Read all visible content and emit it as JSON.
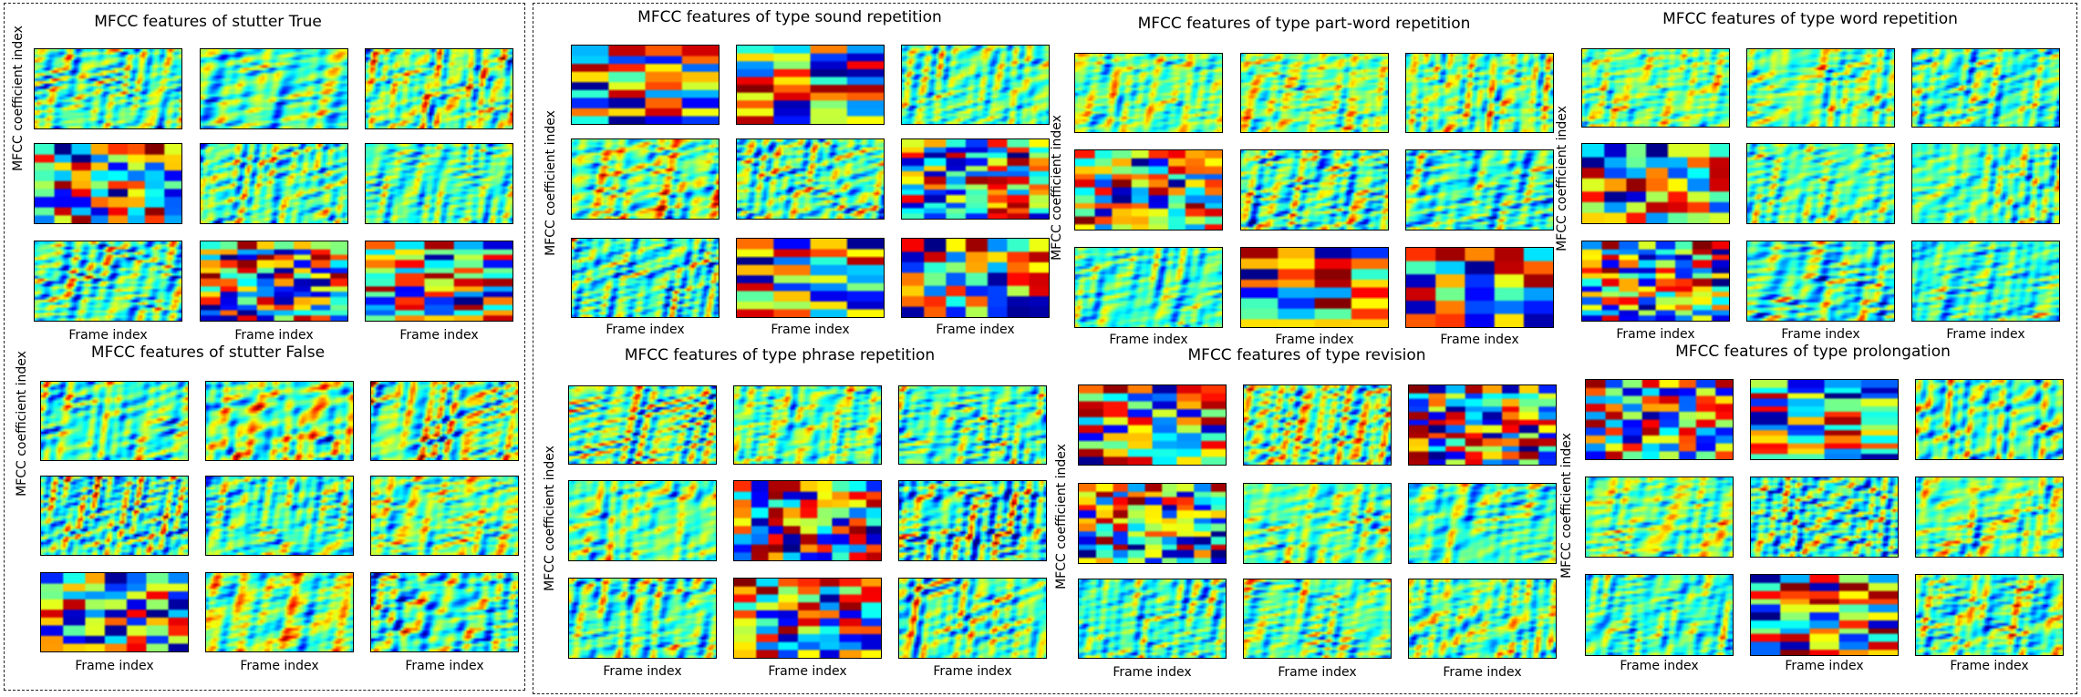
{
  "chart_data": [
    {
      "type": "heatmap",
      "title": "MFCC features of stutter True",
      "xlabel": "Frame index",
      "ylabel": "MFCC coefficient index",
      "grid": "3x3",
      "colormap": "jet"
    },
    {
      "type": "heatmap",
      "title": "MFCC features of stutter False",
      "xlabel": "Frame index",
      "ylabel": "MFCC coefficient index",
      "grid": "3x3",
      "colormap": "jet"
    },
    {
      "type": "heatmap",
      "title": "MFCC features of type sound repetition",
      "xlabel": "Frame index",
      "ylabel": "MFCC coefficient index",
      "grid": "3x3",
      "colormap": "jet"
    },
    {
      "type": "heatmap",
      "title": "MFCC features of type part-word repetition",
      "xlabel": "Frame index",
      "ylabel": "MFCC coefficient index",
      "grid": "3x3",
      "colormap": "jet"
    },
    {
      "type": "heatmap",
      "title": "MFCC features of type word repetition",
      "xlabel": "Frame index",
      "ylabel": "MFCC coefficient index",
      "grid": "3x3",
      "colormap": "jet"
    },
    {
      "type": "heatmap",
      "title": "MFCC features of type phrase repetition",
      "xlabel": "Frame index",
      "ylabel": "MFCC coefficient index",
      "grid": "3x3",
      "colormap": "jet"
    },
    {
      "type": "heatmap",
      "title": "MFCC features of type revision",
      "xlabel": "Frame index",
      "ylabel": "MFCC coefficient index",
      "grid": "3x3",
      "colormap": "jet"
    },
    {
      "type": "heatmap",
      "title": "MFCC features of type prolongation",
      "xlabel": "Frame index",
      "ylabel": "MFCC coefficient index",
      "grid": "3x3",
      "colormap": "jet"
    }
  ]
}
